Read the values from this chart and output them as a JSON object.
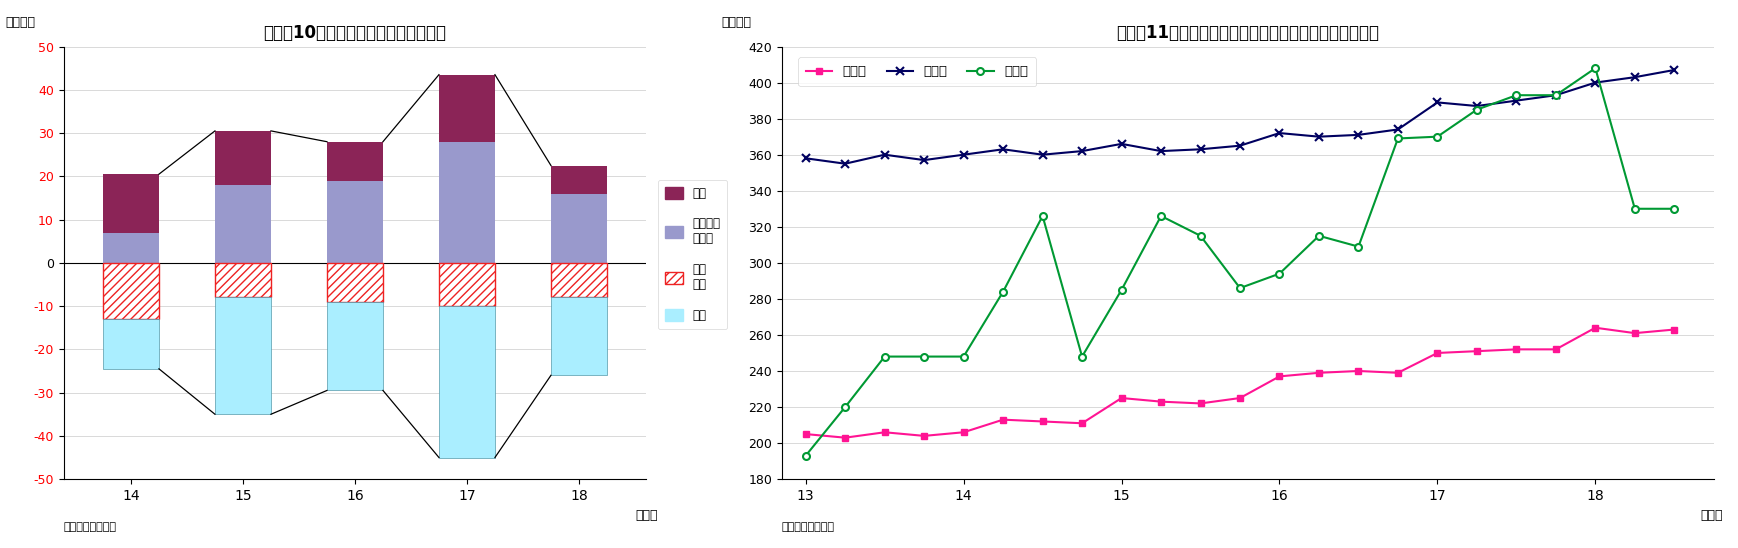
{
  "chart1": {
    "title": "（図表10）部門別資金過不足（暦年）",
    "ylabel": "（兆円）",
    "xlabel": "（年）",
    "source": "（資料）日本銀行",
    "years": [
      14,
      15,
      16,
      17,
      18
    ],
    "katei": [
      13.5,
      12.5,
      9.0,
      15.5,
      6.5
    ],
    "minka": [
      7.0,
      18.0,
      19.0,
      28.0,
      16.0
    ],
    "ippan": [
      -13.0,
      -8.0,
      -9.0,
      -10.0,
      -8.0
    ],
    "kaigai": [
      -24.5,
      -35.0,
      -29.5,
      -45.0,
      -26.0
    ],
    "color_katei": "#8B2457",
    "color_minka": "#9999CC",
    "color_ippan_hatch": "#EE2222",
    "color_kaigai": "#AAEEFF",
    "ylim": [
      -50,
      50
    ],
    "yticks": [
      -50,
      -40,
      -30,
      -20,
      -10,
      0,
      10,
      20,
      30,
      40,
      50
    ]
  },
  "chart2": {
    "title": "（図表11）民間非金融法人の現預金・借入金・株式残高",
    "ylabel": "（兆円）",
    "xlabel": "（年）",
    "source": "（資料）日本銀行",
    "color_genyo": "#FF1493",
    "color_kariire": "#000060",
    "color_kabushiki": "#009933",
    "ylim": [
      180,
      420
    ],
    "yticks": [
      180,
      200,
      220,
      240,
      260,
      280,
      300,
      320,
      340,
      360,
      380,
      400,
      420
    ],
    "x_data": [
      13.0,
      13.25,
      13.5,
      13.75,
      14.0,
      14.25,
      14.5,
      14.75,
      15.0,
      15.25,
      15.5,
      15.75,
      16.0,
      16.25,
      16.5,
      16.75,
      17.0,
      17.25,
      17.5,
      17.75,
      18.0,
      18.25,
      18.5
    ],
    "y_genyo": [
      205,
      203,
      206,
      204,
      206,
      213,
      212,
      211,
      225,
      223,
      222,
      225,
      237,
      239,
      240,
      239,
      250,
      251,
      252,
      252,
      264,
      261,
      263
    ],
    "y_kariire": [
      358,
      355,
      360,
      357,
      360,
      363,
      360,
      362,
      366,
      362,
      363,
      365,
      372,
      370,
      371,
      374,
      389,
      387,
      390,
      393,
      400,
      403,
      407
    ],
    "y_kabushiki": [
      193,
      220,
      248,
      248,
      248,
      284,
      326,
      248,
      285,
      326,
      315,
      286,
      294,
      315,
      309,
      369,
      370,
      385,
      393,
      393,
      408,
      330,
      330
    ]
  }
}
